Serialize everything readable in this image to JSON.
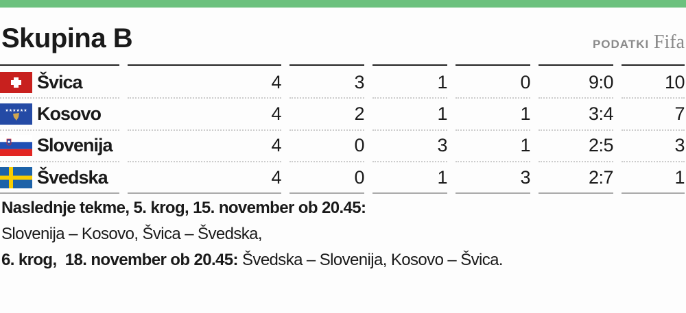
{
  "title": "Skupina B",
  "source": {
    "label": "PODATKI",
    "value": "Fifa"
  },
  "table": {
    "rows": [
      {
        "team": "Švica",
        "flag": "switzerland-flag",
        "cells": [
          "4",
          "3",
          "1",
          "0",
          "9:0",
          "10"
        ]
      },
      {
        "team": "Kosovo",
        "flag": "kosovo-flag",
        "cells": [
          "4",
          "2",
          "1",
          "1",
          "3:4",
          "7"
        ]
      },
      {
        "team": "Slovenija",
        "flag": "slovenia-flag",
        "cells": [
          "4",
          "0",
          "3",
          "1",
          "2:5",
          "3"
        ]
      },
      {
        "team": "Švedska",
        "flag": "sweden-flag",
        "cells": [
          "4",
          "0",
          "1",
          "3",
          "2:7",
          "1"
        ]
      }
    ]
  },
  "notes": {
    "line1": "Naslednje tekme, 5. krog, 15. november ob 20.45:",
    "line2": "Slovenija – Kosovo, Švica – Švedska,",
    "line3_bold": "6. krog,  18. november ob 20.45:",
    "line3": " Švedska – Slovenija, Kosovo – Švica."
  },
  "colors": {
    "accent": "#6cc17e"
  }
}
